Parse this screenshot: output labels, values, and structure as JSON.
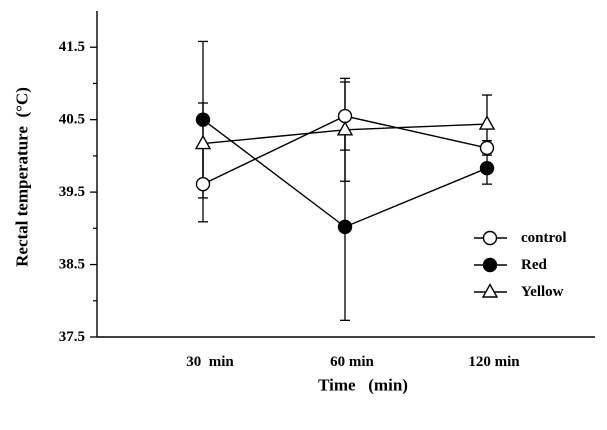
{
  "chart_data": {
    "type": "line",
    "xlabel": "Time   (min)",
    "ylabel": "Rectal temperature  (°C)",
    "categories": [
      "30  min",
      "60 min",
      "120 min"
    ],
    "ylim": [
      37.5,
      42.0
    ],
    "yticks": [
      37.5,
      38.5,
      39.5,
      40.5,
      41.5
    ],
    "minor_yticks": [
      38.0,
      39.0,
      40.0,
      41.0
    ],
    "grid": false,
    "error_bars": true,
    "legend_position": "right",
    "colors": {
      "ink": "#000000",
      "background": "#ffffff"
    },
    "series": [
      {
        "name": "control",
        "marker": "open-circle-icon",
        "values": [
          39.61,
          40.55,
          40.11
        ],
        "errors": [
          0.52,
          0.47,
          0.1
        ]
      },
      {
        "name": "Red",
        "marker": "filled-circle-icon",
        "values": [
          40.5,
          39.02,
          39.83
        ],
        "errors": [
          1.08,
          1.29,
          0.22
        ]
      },
      {
        "name": "Yellow",
        "marker": "open-triangle-icon",
        "values": [
          40.17,
          40.36,
          40.44
        ],
        "errors": [
          0.56,
          0.71,
          0.4
        ]
      }
    ]
  }
}
